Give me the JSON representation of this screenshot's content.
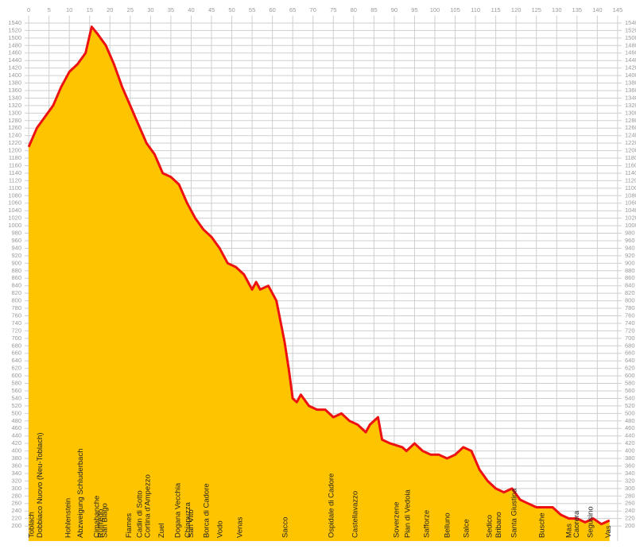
{
  "chart_data": {
    "type": "area",
    "x": [
      0,
      2,
      4,
      6,
      8,
      10,
      12,
      14,
      15.5,
      17,
      19,
      21,
      23,
      25,
      27,
      29,
      31,
      33,
      35,
      37,
      39,
      41,
      43,
      45,
      47,
      49,
      51,
      53,
      55,
      56,
      57,
      59,
      61,
      63,
      64,
      65,
      66,
      67,
      69,
      71,
      73,
      75,
      77,
      79,
      81,
      83,
      84,
      86,
      87,
      89,
      92,
      93,
      95,
      97,
      99,
      101,
      103,
      105,
      107,
      109,
      111,
      113,
      115,
      117,
      119,
      121,
      123,
      125,
      129,
      131,
      133,
      135,
      137,
      139,
      141,
      143
    ],
    "values": [
      1210,
      1260,
      1290,
      1320,
      1370,
      1410,
      1430,
      1460,
      1530,
      1510,
      1480,
      1430,
      1370,
      1320,
      1270,
      1220,
      1190,
      1140,
      1130,
      1110,
      1060,
      1020,
      990,
      970,
      940,
      900,
      890,
      870,
      830,
      850,
      830,
      840,
      800,
      690,
      620,
      540,
      530,
      550,
      520,
      510,
      510,
      490,
      500,
      480,
      470,
      450,
      470,
      490,
      430,
      420,
      410,
      400,
      420,
      400,
      390,
      390,
      380,
      390,
      410,
      400,
      350,
      320,
      300,
      290,
      300,
      270,
      260,
      250,
      250,
      230,
      220,
      220,
      210,
      220,
      205,
      215
    ],
    "line_color": "#ee1111",
    "fill_color": "#ffc400",
    "xlim": [
      -1,
      146
    ],
    "ylim": [
      160,
      1560
    ],
    "xticks": [
      0,
      5,
      10,
      15,
      20,
      25,
      30,
      35,
      40,
      45,
      50,
      55,
      60,
      65,
      70,
      75,
      80,
      85,
      90,
      95,
      100,
      105,
      110,
      115,
      120,
      125,
      130,
      135,
      140,
      145
    ],
    "yticks": [
      200,
      220,
      240,
      260,
      280,
      300,
      320,
      340,
      360,
      380,
      400,
      420,
      440,
      460,
      480,
      500,
      520,
      540,
      560,
      580,
      600,
      620,
      640,
      660,
      680,
      700,
      720,
      740,
      760,
      780,
      800,
      820,
      840,
      860,
      880,
      900,
      920,
      940,
      960,
      980,
      1000,
      1020,
      1040,
      1060,
      1080,
      1100,
      1120,
      1140,
      1160,
      1180,
      1200,
      1220,
      1240,
      1260,
      1280,
      1300,
      1320,
      1340,
      1360,
      1380,
      1400,
      1420,
      1440,
      1460,
      1480,
      1500,
      1520,
      1540
    ],
    "grid": true,
    "stations": [
      {
        "name": "Toblach",
        "km": 0
      },
      {
        "name": "Dobbiaco Nuovo (Neu-Toblach)",
        "km": 2
      },
      {
        "name": "Hohlenstein",
        "km": 9
      },
      {
        "name": "Abzweigung Schluderbach",
        "km": 12
      },
      {
        "name": "Cimabanche",
        "km": 16
      },
      {
        "name": "Ruffredo",
        "km": 17
      },
      {
        "name": "San Biago",
        "km": 18
      },
      {
        "name": "Fiames",
        "km": 24
      },
      {
        "name": "Cadin di Sotto",
        "km": 26.6
      },
      {
        "name": "Cortina d'Ampezzo",
        "km": 28.6
      },
      {
        "name": "Zuel",
        "km": 32
      },
      {
        "name": "Dogana Vecchia",
        "km": 36
      },
      {
        "name": "Chiapuzza",
        "km": 38.4
      },
      {
        "name": "San Vito",
        "km": 39.2
      },
      {
        "name": "Borca di Cadore",
        "km": 43
      },
      {
        "name": "Vodo",
        "km": 46.4
      },
      {
        "name": "Venas",
        "km": 51.3
      },
      {
        "name": "Sacco",
        "km": 62.4
      },
      {
        "name": "Ospidale di Cadore",
        "km": 73.8
      },
      {
        "name": "Castellavazzo",
        "km": 79.6
      },
      {
        "name": "Soverzene",
        "km": 89.8
      },
      {
        "name": "Pian di Vedoia",
        "km": 92.6
      },
      {
        "name": "Safforze",
        "km": 97.3
      },
      {
        "name": "Belluno",
        "km": 102.3
      },
      {
        "name": "Salce",
        "km": 107
      },
      {
        "name": "Sedico",
        "km": 112.7
      },
      {
        "name": "Bribano",
        "km": 115
      },
      {
        "name": "Santa Giustina",
        "km": 118.8
      },
      {
        "name": "Busche",
        "km": 125.6
      },
      {
        "name": "Mas",
        "km": 132.3
      },
      {
        "name": "Caorera",
        "km": 134.2
      },
      {
        "name": "Segusino",
        "km": 137.6
      },
      {
        "name": "Vas",
        "km": 142
      }
    ]
  }
}
